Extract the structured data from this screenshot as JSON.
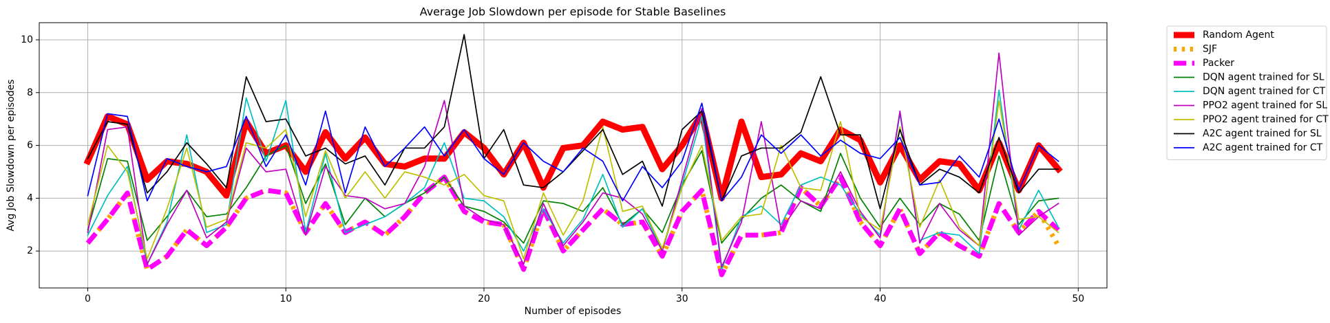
{
  "chart_data": {
    "type": "line",
    "title": "Average Job Slowdown per episode for Stable Baselines",
    "xlabel": "Number of episodes",
    "ylabel": "Avg Job Slowdown per episodes",
    "x": [
      0,
      1,
      2,
      3,
      4,
      5,
      6,
      7,
      8,
      9,
      10,
      11,
      12,
      13,
      14,
      15,
      16,
      17,
      18,
      19,
      20,
      21,
      22,
      23,
      24,
      25,
      26,
      27,
      28,
      29,
      30,
      31,
      32,
      33,
      34,
      35,
      36,
      37,
      38,
      39,
      40,
      41,
      42,
      43,
      44,
      45,
      46,
      47,
      48,
      49
    ],
    "xlim": [
      -2.45,
      51.45
    ],
    "xticks": [
      0,
      10,
      20,
      30,
      40,
      50
    ],
    "ylim": [
      0.6,
      10.65
    ],
    "yticks": [
      2,
      4,
      6,
      8,
      10
    ],
    "grid": true,
    "legend": "outside upper right",
    "series": [
      {
        "name": "Random Agent",
        "color": "#ff0000",
        "dash": "solid",
        "width": 9,
        "values": [
          5.4,
          7.1,
          6.8,
          4.7,
          5.4,
          5.3,
          5.0,
          4.1,
          6.9,
          5.7,
          6.0,
          5.0,
          6.5,
          5.5,
          6.3,
          5.3,
          5.2,
          5.5,
          5.5,
          6.5,
          5.9,
          4.9,
          6.1,
          4.4,
          5.9,
          6.0,
          6.9,
          6.6,
          6.7,
          5.1,
          6.0,
          7.2,
          4.0,
          6.9,
          4.8,
          4.9,
          5.7,
          5.4,
          6.6,
          6.2,
          4.6,
          6.0,
          4.7,
          5.4,
          5.3,
          4.3,
          6.1,
          4.3,
          6.0,
          5.1
        ]
      },
      {
        "name": "SJF",
        "color": "#ffa500",
        "dash": "dotted",
        "width": 7,
        "values": [
          2.3,
          3.2,
          4.2,
          1.3,
          1.8,
          2.8,
          2.2,
          2.9,
          4.0,
          4.3,
          4.2,
          2.7,
          3.8,
          2.7,
          3.1,
          2.6,
          3.3,
          4.2,
          4.8,
          3.5,
          3.1,
          3.0,
          1.3,
          3.6,
          2.0,
          2.8,
          3.6,
          3.0,
          3.1,
          1.8,
          3.5,
          4.3,
          1.1,
          2.6,
          2.6,
          2.7,
          4.4,
          3.7,
          4.8,
          3.1,
          2.2,
          3.6,
          1.9,
          2.7,
          2.2,
          1.8,
          3.8,
          2.7,
          3.5,
          2.2
        ]
      },
      {
        "name": "Packer",
        "color": "#ff00ff",
        "dash": "dashed",
        "width": 7,
        "values": [
          2.3,
          3.2,
          4.2,
          1.3,
          1.8,
          2.8,
          2.2,
          2.9,
          4.0,
          4.3,
          4.2,
          2.7,
          3.8,
          2.7,
          3.1,
          2.6,
          3.3,
          4.2,
          4.8,
          3.5,
          3.1,
          3.0,
          1.3,
          3.6,
          2.0,
          2.8,
          3.6,
          3.0,
          3.1,
          1.8,
          3.5,
          4.3,
          1.1,
          2.6,
          2.6,
          2.7,
          4.4,
          3.7,
          4.8,
          3.1,
          2.2,
          3.6,
          1.9,
          2.7,
          2.2,
          1.8,
          3.8,
          2.7,
          3.5,
          2.8
        ]
      },
      {
        "name": "DQN agent trained for SL",
        "color": "#008000",
        "dash": "solid",
        "width": 1.7,
        "values": [
          2.8,
          5.5,
          5.4,
          2.4,
          3.3,
          4.3,
          3.3,
          3.4,
          4.4,
          5.6,
          6.0,
          3.8,
          5.3,
          3.0,
          4.0,
          3.3,
          3.8,
          4.2,
          4.8,
          3.7,
          3.5,
          3.1,
          2.3,
          3.9,
          3.8,
          3.5,
          4.4,
          3.0,
          3.6,
          2.7,
          4.5,
          5.8,
          2.3,
          3.2,
          4.0,
          4.5,
          3.9,
          3.5,
          5.7,
          4.0,
          2.9,
          4.0,
          3.0,
          3.8,
          3.4,
          2.4,
          5.6,
          3.0,
          3.9,
          4.0
        ]
      },
      {
        "name": "DQN agent trained for CT",
        "color": "#00bfbf",
        "dash": "solid",
        "width": 1.7,
        "values": [
          2.6,
          4.1,
          5.2,
          1.5,
          3.1,
          6.4,
          2.7,
          3.0,
          7.8,
          5.4,
          7.7,
          2.7,
          5.7,
          2.7,
          3.0,
          3.3,
          3.8,
          4.4,
          6.1,
          4.0,
          3.9,
          3.3,
          2.0,
          3.6,
          2.3,
          3.2,
          4.9,
          2.9,
          3.6,
          2.0,
          4.5,
          7.1,
          1.3,
          3.3,
          3.7,
          3.0,
          4.5,
          4.8,
          4.5,
          3.4,
          2.6,
          7.2,
          2.4,
          2.7,
          2.6,
          1.9,
          8.1,
          2.8,
          4.3,
          2.9
        ]
      },
      {
        "name": "PPO2 agent trained for SL",
        "color": "#bf00bf",
        "dash": "solid",
        "width": 1.7,
        "values": [
          2.7,
          6.6,
          6.7,
          1.5,
          3.0,
          4.3,
          2.5,
          3.1,
          5.9,
          5.0,
          5.1,
          2.6,
          5.2,
          4.1,
          4.0,
          3.6,
          3.8,
          5.2,
          7.7,
          3.7,
          3.2,
          3.0,
          1.5,
          3.8,
          2.2,
          3.1,
          4.2,
          4.0,
          3.4,
          2.0,
          4.7,
          7.4,
          1.4,
          3.1,
          6.9,
          2.8,
          3.9,
          3.6,
          5.0,
          3.5,
          2.5,
          7.3,
          2.3,
          3.8,
          2.8,
          2.2,
          9.5,
          2.6,
          3.3,
          3.8
        ]
      },
      {
        "name": "PPO2 agent trained for CT",
        "color": "#bfbf00",
        "dash": "solid",
        "width": 1.7,
        "values": [
          3.0,
          6.0,
          5.0,
          1.7,
          3.6,
          5.9,
          2.9,
          3.2,
          6.1,
          5.9,
          6.6,
          3.3,
          5.8,
          4.0,
          5.0,
          4.0,
          5.0,
          4.8,
          4.5,
          4.9,
          4.1,
          3.9,
          1.7,
          4.2,
          2.6,
          3.9,
          6.7,
          3.5,
          3.7,
          2.1,
          4.4,
          6.0,
          2.4,
          3.3,
          3.4,
          6.0,
          4.4,
          4.3,
          6.9,
          3.3,
          2.8,
          6.7,
          2.9,
          4.7,
          2.9,
          2.2,
          7.7,
          3.2,
          3.3,
          2.7
        ]
      },
      {
        "name": "A2C agent trained for SL",
        "color": "#000000",
        "dash": "solid",
        "width": 1.7,
        "values": [
          5.5,
          6.9,
          6.8,
          4.2,
          5.0,
          6.1,
          5.3,
          4.4,
          8.6,
          6.9,
          7.0,
          5.6,
          5.9,
          5.3,
          5.6,
          4.5,
          5.9,
          5.9,
          6.7,
          10.2,
          5.5,
          6.6,
          4.5,
          4.4,
          5.0,
          5.8,
          6.6,
          4.9,
          5.4,
          3.7,
          6.6,
          7.3,
          3.9,
          5.6,
          5.9,
          5.9,
          6.5,
          8.6,
          6.4,
          6.4,
          3.6,
          6.6,
          4.5,
          5.1,
          4.8,
          4.2,
          6.3,
          4.2,
          5.1,
          5.1
        ]
      },
      {
        "name": "A2C agent trained for CT",
        "color": "#0000ff",
        "dash": "solid",
        "width": 1.7,
        "values": [
          4.1,
          7.2,
          7.1,
          3.9,
          5.5,
          5.2,
          5.0,
          5.2,
          7.1,
          5.2,
          6.4,
          4.5,
          7.3,
          4.2,
          6.7,
          5.2,
          5.9,
          6.7,
          5.6,
          6.6,
          5.5,
          4.9,
          6.1,
          5.4,
          5.0,
          5.9,
          5.4,
          3.9,
          5.2,
          4.4,
          5.4,
          7.6,
          3.9,
          4.8,
          6.4,
          5.7,
          6.4,
          5.6,
          6.2,
          5.7,
          5.5,
          6.3,
          4.5,
          4.6,
          5.6,
          4.8,
          7.0,
          4.3,
          6.0,
          5.4
        ]
      }
    ]
  }
}
